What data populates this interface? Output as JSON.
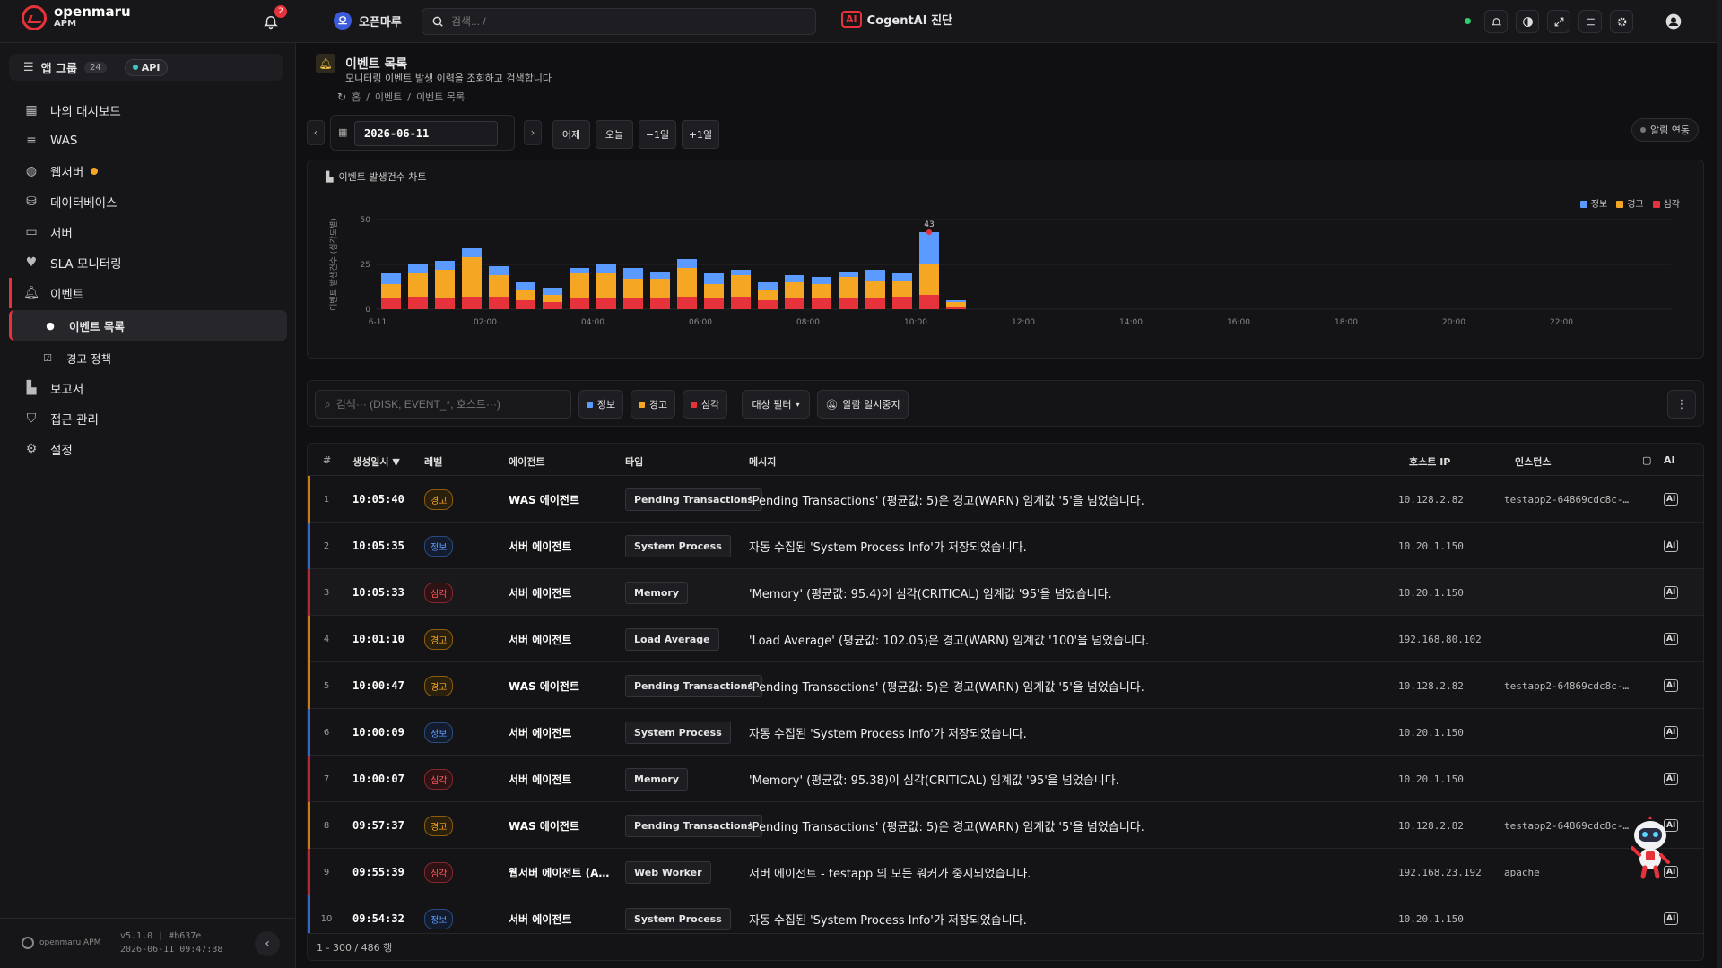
{
  "app": {
    "brand_line1": "openmaru",
    "brand_line2": "APM",
    "notification_count": "2",
    "org_initial": "오",
    "org_name": "오픈마루",
    "search_placeholder": "검색... /",
    "ai_badge": "AI",
    "ai_diag_label": "CogentAI 진단"
  },
  "sidebar": {
    "app_group_label": "앱 그룹",
    "app_group_count": "24",
    "api_label": "API",
    "items": [
      {
        "label": "나의 대시보드",
        "icon": "dashboard-icon"
      },
      {
        "label": "WAS",
        "icon": "server-stack-icon"
      },
      {
        "label": "웹서버",
        "icon": "globe-icon"
      },
      {
        "label": "데이터베이스",
        "icon": "database-icon"
      },
      {
        "label": "서버",
        "icon": "monitor-icon"
      },
      {
        "label": "SLA 모니터링",
        "icon": "heart-icon"
      },
      {
        "label": "이벤트",
        "icon": "bell-icon"
      },
      {
        "label": "이벤트 목록",
        "icon": "bell-icon"
      },
      {
        "label": "경고 정책",
        "icon": "checkbox-icon"
      },
      {
        "label": "보고서",
        "icon": "chart-icon"
      },
      {
        "label": "접근 관리",
        "icon": "shield-icon"
      },
      {
        "label": "설정",
        "icon": "gears-icon"
      }
    ],
    "footer_logo": "openmaru APM",
    "version": "v5.1.0 | #b637e",
    "build_time": "2026-06-11 09:47:38"
  },
  "page": {
    "title": "이벤트 목록",
    "subtitle": "모니터링 이벤트 발생 이력을 조회하고 검색합니다",
    "breadcrumb": [
      "홈",
      "이벤트",
      "이벤트 목록"
    ],
    "date": "2026-06-11",
    "quick_buttons": [
      "어제",
      "오늘",
      "−1일",
      "+1일"
    ],
    "alarm_link": "알림 연동"
  },
  "chart_data": {
    "type": "bar",
    "title": "이벤트 발생건수 차트",
    "ylabel": "이벤트 발생건수 (심각도별)",
    "ylim": [
      0,
      50
    ],
    "yticks": [
      0,
      25,
      50
    ],
    "xticks": [
      "6-11",
      "02:00",
      "04:00",
      "06:00",
      "08:00",
      "10:00",
      "12:00",
      "14:00",
      "16:00",
      "18:00",
      "20:00",
      "22:00"
    ],
    "peak_label": "43",
    "series": [
      {
        "name": "정보",
        "color": "#5b9bff",
        "values": [
          6,
          5,
          5,
          5,
          5,
          4,
          4,
          3,
          5,
          6,
          4,
          5,
          6,
          3,
          4,
          4,
          4,
          3,
          6,
          4,
          18,
          1
        ]
      },
      {
        "name": "경고",
        "color": "#f5a623",
        "values": [
          8,
          13,
          16,
          22,
          12,
          6,
          4,
          14,
          14,
          11,
          11,
          16,
          8,
          12,
          6,
          9,
          8,
          12,
          10,
          9,
          17,
          3
        ]
      },
      {
        "name": "심각",
        "color": "#e5323b",
        "values": [
          6,
          7,
          6,
          7,
          7,
          5,
          4,
          6,
          6,
          6,
          6,
          7,
          6,
          7,
          5,
          6,
          6,
          6,
          6,
          7,
          8,
          1
        ]
      }
    ]
  },
  "filters": {
    "search_placeholder": "검색··· (DISK, EVENT_*, 호스트···)",
    "chips": [
      {
        "label": "정보",
        "color": "#5b9bff"
      },
      {
        "label": "경고",
        "color": "#f5a623"
      },
      {
        "label": "심각",
        "color": "#e5323b"
      }
    ],
    "target_filter": "대상 필터",
    "pause_alarm": "알람 일시중지"
  },
  "table": {
    "columns": [
      "#",
      "생성일시",
      "레벨",
      "에이전트",
      "타입",
      "메시지",
      "호스트 IP",
      "인스턴스",
      "AI"
    ],
    "rows": [
      {
        "num": "1",
        "time": "10:05:40",
        "level": "경고",
        "lvl": "warn",
        "agent": "WAS 에이전트",
        "type": "Pending Transactions",
        "msg": "'Pending Transactions' (평균값: 5)은 경고(WARN) 임계값 '5'을 넘었습니다.",
        "ip": "10.128.2.82",
        "inst": "testapp2-64869cdc8c-…"
      },
      {
        "num": "2",
        "time": "10:05:35",
        "level": "정보",
        "lvl": "info",
        "agent": "서버 에이전트",
        "type": "System Process",
        "msg": "자동 수집된 'System Process Info'가 저장되었습니다.",
        "ip": "10.20.1.150",
        "inst": ""
      },
      {
        "num": "3",
        "time": "10:05:33",
        "level": "심각",
        "lvl": "crit",
        "agent": "서버 에이전트",
        "type": "Memory",
        "msg": "'Memory' (평균값: 95.4)이 심각(CRITICAL) 임계값 '95'을 넘었습니다.",
        "ip": "10.20.1.150",
        "inst": ""
      },
      {
        "num": "4",
        "time": "10:01:10",
        "level": "경고",
        "lvl": "warn",
        "agent": "서버 에이전트",
        "type": "Load Average",
        "msg": "'Load Average' (평균값: 102.05)은 경고(WARN) 임계값 '100'을 넘었습니다.",
        "ip": "192.168.80.102",
        "inst": ""
      },
      {
        "num": "5",
        "time": "10:00:47",
        "level": "경고",
        "lvl": "warn",
        "agent": "WAS 에이전트",
        "type": "Pending Transactions",
        "msg": "'Pending Transactions' (평균값: 5)은 경고(WARN) 임계값 '5'을 넘었습니다.",
        "ip": "10.128.2.82",
        "inst": "testapp2-64869cdc8c-…"
      },
      {
        "num": "6",
        "time": "10:00:09",
        "level": "정보",
        "lvl": "info",
        "agent": "서버 에이전트",
        "type": "System Process",
        "msg": "자동 수집된 'System Process Info'가 저장되었습니다.",
        "ip": "10.20.1.150",
        "inst": ""
      },
      {
        "num": "7",
        "time": "10:00:07",
        "level": "심각",
        "lvl": "crit",
        "agent": "서버 에이전트",
        "type": "Memory",
        "msg": "'Memory' (평균값: 95.38)이 심각(CRITICAL) 임계값 '95'을 넘었습니다.",
        "ip": "10.20.1.150",
        "inst": ""
      },
      {
        "num": "8",
        "time": "09:57:37",
        "level": "경고",
        "lvl": "warn",
        "agent": "WAS 에이전트",
        "type": "Pending Transactions",
        "msg": "'Pending Transactions' (평균값: 5)은 경고(WARN) 임계값 '5'을 넘었습니다.",
        "ip": "10.128.2.82",
        "inst": "testapp2-64869cdc8c-…"
      },
      {
        "num": "9",
        "time": "09:55:39",
        "level": "심각",
        "lvl": "crit",
        "agent": "웹서버 에이전트 (A…",
        "type": "Web Worker",
        "msg": "서버 에이전트 - testapp 의 모든 워커가 중지되었습니다.",
        "ip": "192.168.23.192",
        "inst": "apache"
      },
      {
        "num": "10",
        "time": "09:54:32",
        "level": "정보",
        "lvl": "info",
        "agent": "서버 에이전트",
        "type": "System Process",
        "msg": "자동 수집된 'System Process Info'가 저장되었습니다.",
        "ip": "10.20.1.150",
        "inst": ""
      }
    ],
    "footer": "1 - 300 / 486 행"
  }
}
